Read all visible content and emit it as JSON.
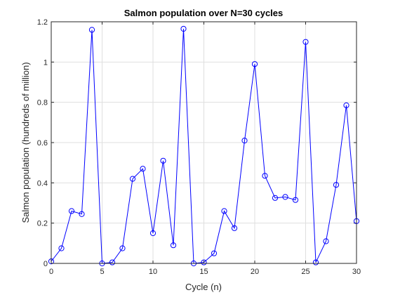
{
  "chart_data": {
    "type": "line",
    "title": "Salmon population over N=30 cycles",
    "xlabel": "Cycle (n)",
    "ylabel": "Salmon population (hundreds of million)",
    "xlim": [
      0,
      30
    ],
    "ylim": [
      0,
      1.2
    ],
    "xticks": [
      0,
      5,
      10,
      15,
      20,
      25,
      30
    ],
    "yticks": [
      0,
      0.2,
      0.4,
      0.6,
      0.8,
      1,
      1.2
    ],
    "xtick_labels": [
      "0",
      "5",
      "10",
      "15",
      "20",
      "25",
      "30"
    ],
    "ytick_labels": [
      "0",
      "0.2",
      "0.4",
      "0.6",
      "0.8",
      "1",
      "1.2"
    ],
    "grid": true,
    "marker": "circle",
    "line_color": "#0000ff",
    "series": [
      {
        "x": [
          0,
          1,
          2,
          3,
          4,
          5,
          6,
          7,
          8,
          9,
          10,
          11,
          12,
          13,
          14,
          15,
          16,
          17,
          18,
          19,
          20,
          21,
          22,
          23,
          24,
          25,
          26,
          27,
          28,
          29,
          30
        ],
        "values": [
          0.01,
          0.075,
          0.26,
          0.245,
          1.16,
          0.0,
          0.005,
          0.075,
          0.42,
          0.47,
          0.15,
          0.51,
          0.09,
          1.165,
          0.0,
          0.005,
          0.05,
          0.26,
          0.175,
          0.61,
          0.99,
          0.435,
          0.325,
          0.33,
          0.315,
          1.1,
          0.005,
          0.11,
          0.39,
          0.785,
          0.21
        ]
      }
    ]
  }
}
